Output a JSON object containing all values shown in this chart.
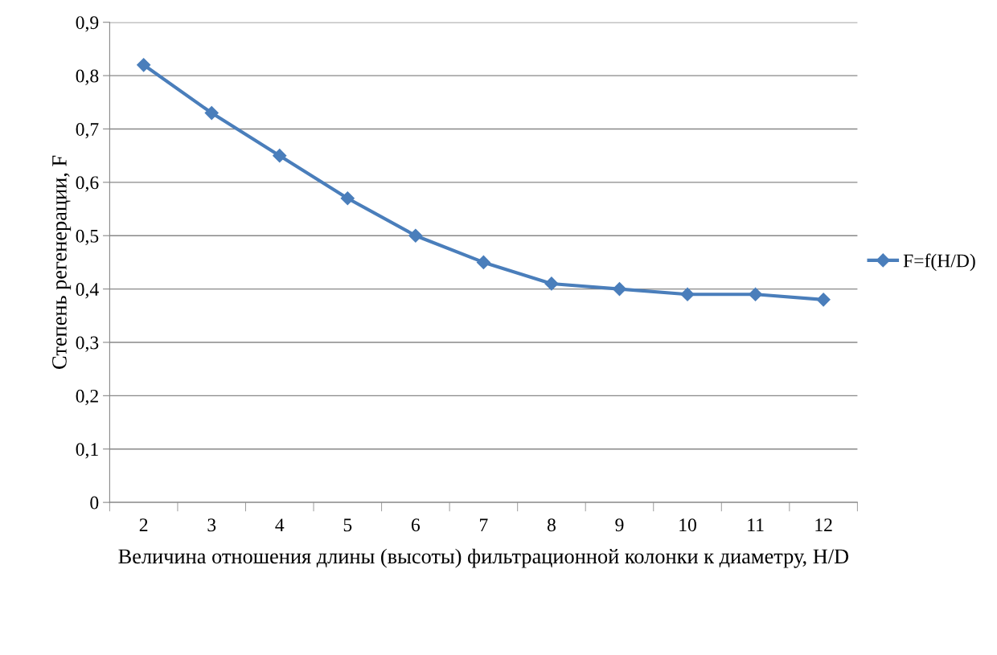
{
  "chart_data": {
    "type": "line",
    "xlabel": "Величина отношения длины (высоты) фильтрационной колонки к диаметру, H/D",
    "ylabel": "Степень регенерации, F",
    "categories": [
      "2",
      "3",
      "4",
      "5",
      "6",
      "7",
      "8",
      "9",
      "10",
      "11",
      "12"
    ],
    "series": [
      {
        "name": "F=f(H/D)",
        "color": "#4a7ebb",
        "values": [
          0.82,
          0.73,
          0.65,
          0.57,
          0.5,
          0.45,
          0.41,
          0.4,
          0.39,
          0.39,
          0.38
        ]
      }
    ],
    "ylim": [
      0,
      0.9
    ],
    "yticks": [
      0,
      {
        "value": 0.1,
        "label": "0,1"
      },
      {
        "value": 0.2,
        "label": "0,2"
      },
      {
        "value": 0.3,
        "label": "0,3"
      },
      {
        "value": 0.4,
        "label": "0,4"
      },
      {
        "value": 0.5,
        "label": "0,5"
      },
      {
        "value": 0.6,
        "label": "0,6"
      },
      {
        "value": 0.7,
        "label": "0,7"
      },
      {
        "value": 0.8,
        "label": "0,8"
      },
      {
        "value": 0.9,
        "label": "0,9"
      }
    ],
    "grid": "y",
    "legend": "right",
    "marker": "diamond",
    "line_style": "solid"
  }
}
